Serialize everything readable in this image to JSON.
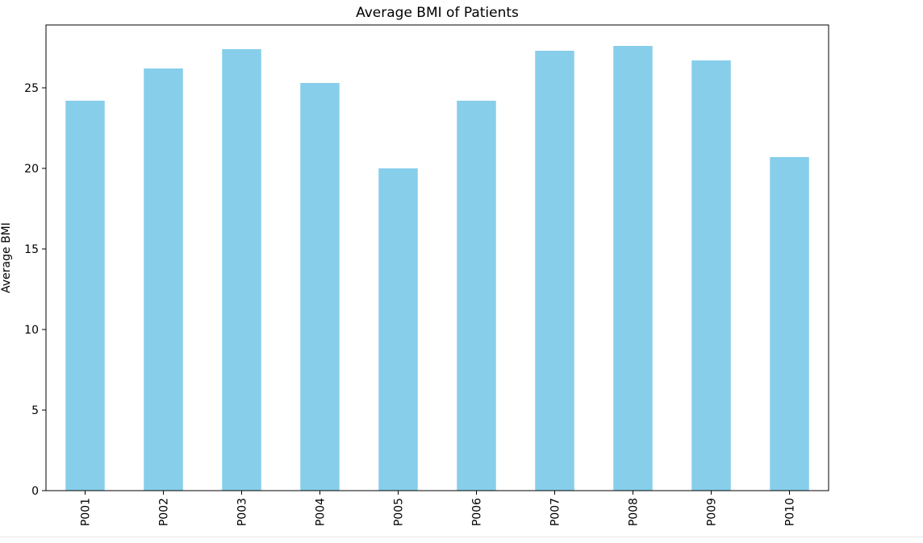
{
  "chart_data": {
    "type": "bar",
    "title": "Average BMI of Patients",
    "xlabel": "",
    "ylabel": "Average BMI",
    "categories": [
      "P001",
      "P002",
      "P003",
      "P004",
      "P005",
      "P006",
      "P007",
      "P008",
      "P009",
      "P010"
    ],
    "values": [
      24.2,
      26.2,
      27.4,
      25.3,
      20.0,
      24.2,
      27.3,
      27.6,
      26.7,
      20.7
    ],
    "ylim": [
      0,
      28.9
    ],
    "yticks": [
      0,
      5,
      10,
      15,
      20,
      25
    ],
    "grid": false,
    "legend": "none",
    "colors": {
      "bar": "#87ceeb",
      "axis": "#000000",
      "text": "#000000"
    }
  }
}
